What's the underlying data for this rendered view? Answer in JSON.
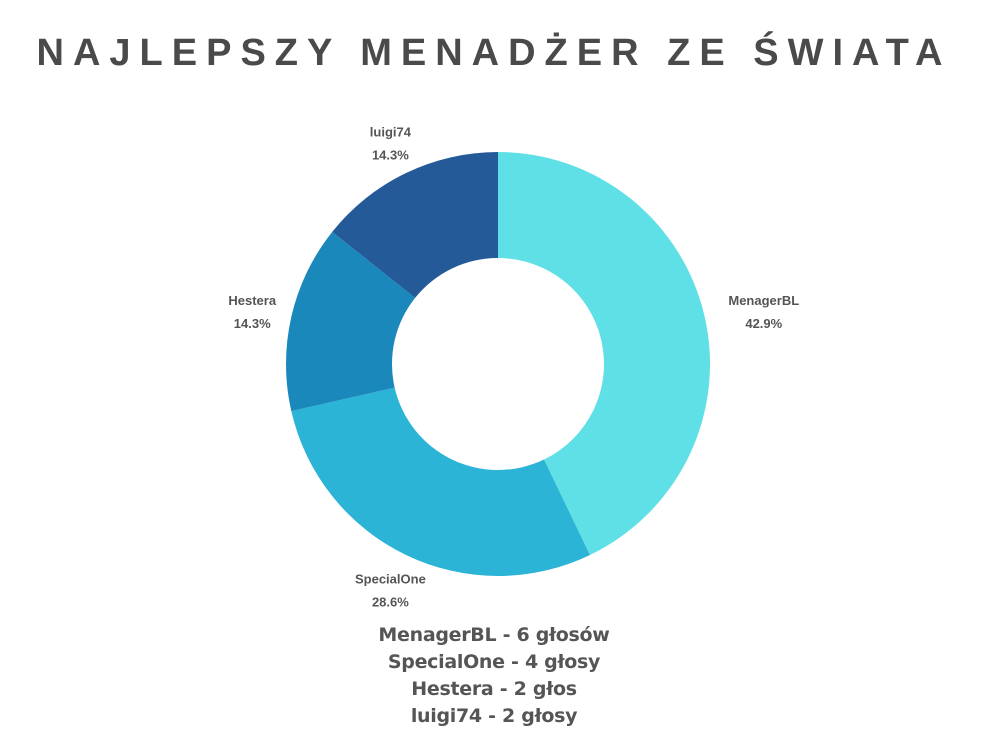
{
  "chart_data": {
    "type": "pie",
    "donut": true,
    "title": "NAJLEPSZY MENADŻER ZE ŚWIATA",
    "slices": [
      {
        "label": "MenagerBL",
        "value": 6,
        "percent_label": "42.9%",
        "color": "#5ee0e6"
      },
      {
        "label": "SpecialOne",
        "value": 4,
        "percent_label": "28.6%",
        "color": "#2cb4d6"
      },
      {
        "label": "Hestera",
        "value": 2,
        "percent_label": "14.3%",
        "color": "#1a88bb"
      },
      {
        "label": "luigi74",
        "value": 2,
        "percent_label": "14.3%",
        "color": "#255a99"
      }
    ]
  },
  "summary": [
    "MenagerBL - 6 głosów",
    "SpecialOne - 4 głosy",
    "Hestera - 2 głos",
    "luigi74 - 2 głosy"
  ]
}
